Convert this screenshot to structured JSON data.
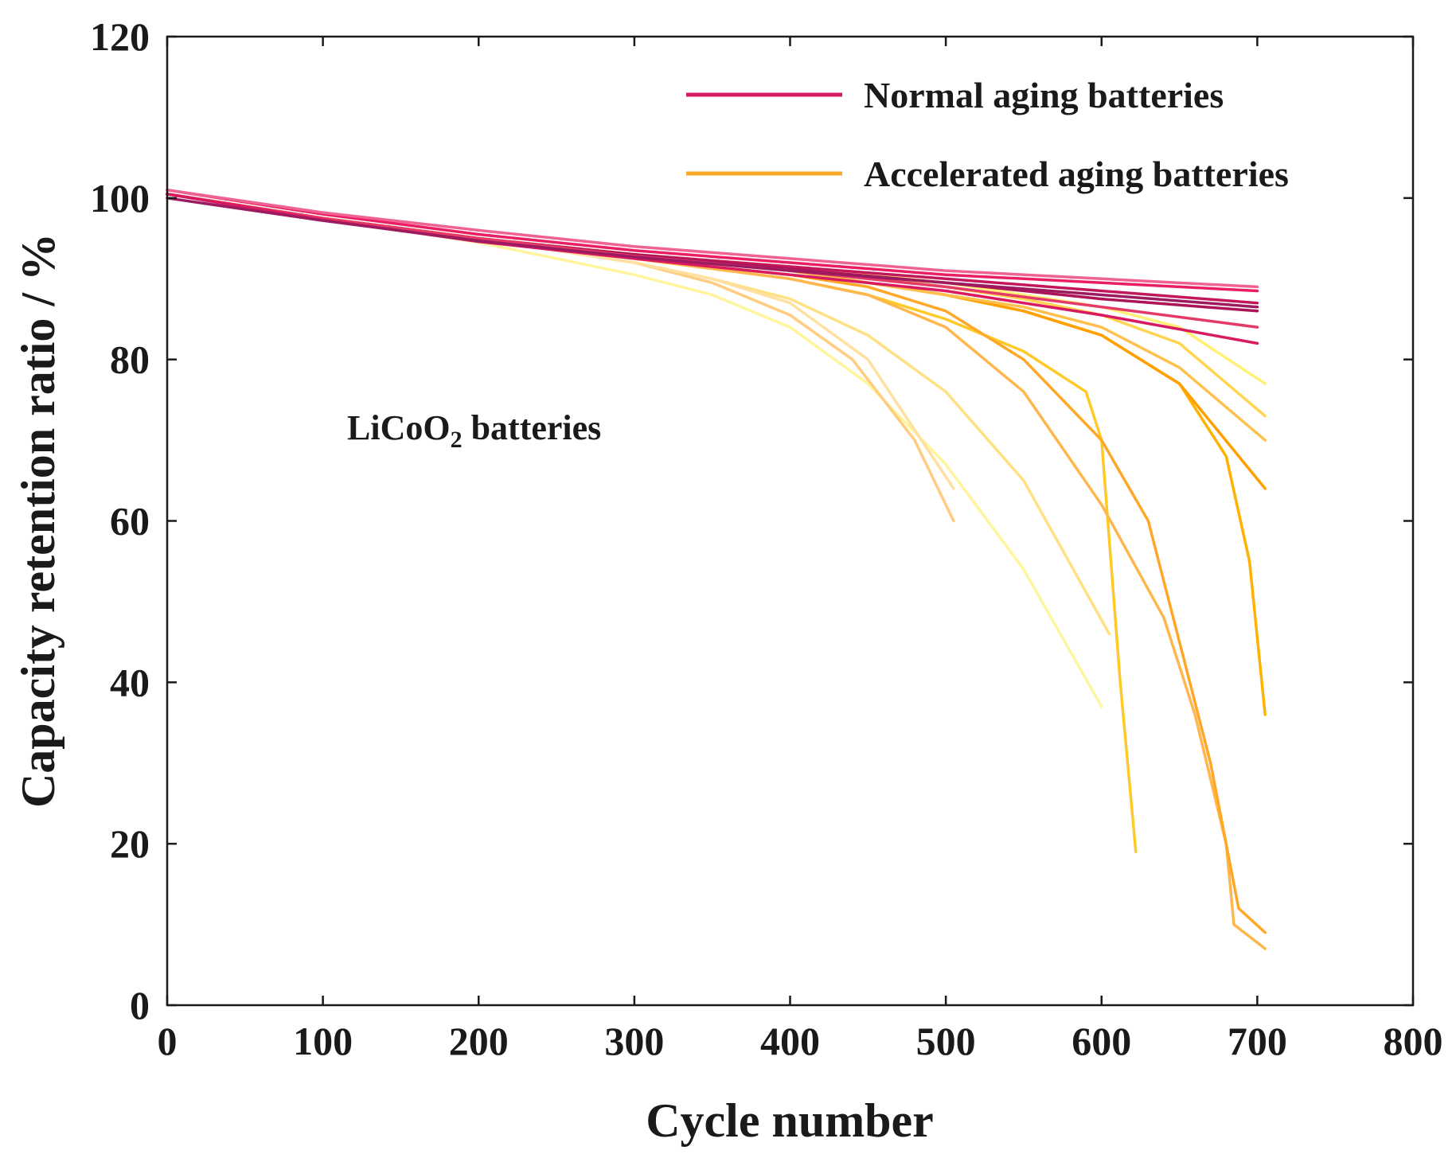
{
  "chart_data": {
    "type": "line",
    "title": "",
    "xlabel": "Cycle number",
    "ylabel": "Capacity retention ratio / %",
    "xlim": [
      0,
      800
    ],
    "ylim": [
      0,
      120
    ],
    "xticks": [
      0,
      100,
      200,
      300,
      400,
      500,
      600,
      700,
      800
    ],
    "yticks": [
      0,
      20,
      40,
      60,
      80,
      100,
      120
    ],
    "grid": false,
    "legend_position": "top-right",
    "legend": [
      {
        "label": "Normal aging batteries",
        "color": "#d81b60"
      },
      {
        "label": "Accelerated aging batteries",
        "color": "#f9a825"
      }
    ],
    "annotation": {
      "prefix": "LiCoO",
      "subscript": "2",
      "suffix": " batteries"
    },
    "series": [
      {
        "name": "Normal aging batteries",
        "color": "#e91e63",
        "x": [
          0,
          100,
          200,
          300,
          400,
          500,
          600,
          700
        ],
        "y": [
          101,
          98,
          95.5,
          93.5,
          92,
          90.5,
          89.5,
          88.5
        ]
      },
      {
        "name": "Normal aging batteries",
        "color": "#c2185b",
        "x": [
          0,
          100,
          200,
          300,
          400,
          500,
          600,
          700
        ],
        "y": [
          100.5,
          97.5,
          95,
          93,
          91.5,
          90,
          88.5,
          87
        ]
      },
      {
        "name": "Normal aging batteries",
        "color": "#ad1457",
        "x": [
          0,
          100,
          200,
          300,
          400,
          500,
          600,
          700
        ],
        "y": [
          100.5,
          97.3,
          94.8,
          93,
          91.2,
          89.5,
          87.5,
          86
        ]
      },
      {
        "name": "Normal aging batteries",
        "color": "#f06292",
        "x": [
          0,
          100,
          200,
          300,
          400,
          500,
          600,
          700
        ],
        "y": [
          101,
          98.2,
          96,
          94,
          92.5,
          91,
          90,
          89
        ]
      },
      {
        "name": "Normal aging batteries",
        "color": "#e53967",
        "x": [
          0,
          100,
          200,
          300,
          400,
          500,
          600,
          700
        ],
        "y": [
          100.5,
          97.5,
          95,
          92.8,
          91,
          89,
          86.5,
          84
        ]
      },
      {
        "name": "Normal aging batteries",
        "color": "#d81b60",
        "x": [
          0,
          100,
          200,
          300,
          400,
          500,
          600,
          700
        ],
        "y": [
          100.5,
          97.3,
          94.6,
          92.5,
          90.5,
          88.5,
          85.5,
          82
        ]
      },
      {
        "name": "Normal aging batteries",
        "color": "#9c1a5f",
        "x": [
          0,
          100,
          200,
          300,
          400,
          500,
          600,
          700
        ],
        "y": [
          100,
          97.2,
          94.7,
          92.7,
          91,
          89.5,
          88,
          86.5
        ]
      },
      {
        "name": "Accelerated aging batteries",
        "color": "#fff59d",
        "x": [
          0,
          100,
          200,
          250,
          300,
          350,
          400,
          450,
          500,
          550,
          600
        ],
        "y": [
          100.5,
          97.5,
          94.5,
          92.5,
          90.5,
          88,
          84,
          77,
          67,
          54,
          37
        ]
      },
      {
        "name": "Accelerated aging batteries",
        "color": "#ffe082",
        "x": [
          0,
          100,
          200,
          300,
          350,
          400,
          450,
          500,
          550,
          605
        ],
        "y": [
          100.5,
          97.5,
          95,
          92,
          90,
          87.5,
          83,
          76,
          65,
          46
        ]
      },
      {
        "name": "Accelerated aging batteries",
        "color": "#ffcc80",
        "x": [
          0,
          100,
          200,
          300,
          350,
          400,
          440,
          480,
          505
        ],
        "y": [
          100.5,
          97.5,
          95,
          92,
          89.5,
          85.5,
          80,
          70,
          60
        ]
      },
      {
        "name": "Accelerated aging batteries",
        "color": "#ffe0a0",
        "x": [
          0,
          100,
          200,
          300,
          350,
          400,
          450,
          505
        ],
        "y": [
          100.5,
          97.5,
          95,
          92,
          90,
          87,
          80,
          64
        ]
      },
      {
        "name": "Accelerated aging batteries",
        "color": "#ffca28",
        "x": [
          0,
          100,
          200,
          300,
          400,
          450,
          500,
          550,
          590,
          600,
          612,
          622
        ],
        "y": [
          100.5,
          97.5,
          95,
          92.5,
          90,
          88,
          85,
          81,
          76,
          70,
          40,
          19
        ]
      },
      {
        "name": "Accelerated aging batteries",
        "color": "#ffb74d",
        "x": [
          0,
          100,
          200,
          300,
          400,
          450,
          500,
          550,
          600,
          640,
          660,
          680,
          685,
          705
        ],
        "y": [
          100.5,
          97.5,
          95,
          92.5,
          90,
          88,
          84,
          76,
          62,
          48,
          36,
          20,
          10,
          7
        ]
      },
      {
        "name": "Accelerated aging batteries",
        "color": "#ffa726",
        "x": [
          0,
          100,
          200,
          300,
          400,
          450,
          500,
          550,
          600,
          630,
          650,
          670,
          688,
          705
        ],
        "y": [
          100.5,
          97.5,
          95,
          92.5,
          90.5,
          89,
          86,
          80,
          70,
          60,
          45,
          30,
          12,
          9
        ]
      },
      {
        "name": "Accelerated aging batteries",
        "color": "#ffb300",
        "x": [
          0,
          100,
          200,
          300,
          400,
          500,
          550,
          600,
          650,
          680,
          695,
          705
        ],
        "y": [
          100.5,
          97.5,
          95,
          93,
          91,
          88,
          86,
          83,
          77,
          68,
          55,
          36
        ]
      },
      {
        "name": "Accelerated aging batteries",
        "color": "#ffa000",
        "x": [
          0,
          100,
          200,
          300,
          400,
          500,
          550,
          600,
          650,
          705
        ],
        "y": [
          100.5,
          97.5,
          95,
          93,
          91,
          88,
          86,
          83,
          77,
          64
        ]
      },
      {
        "name": "Accelerated aging batteries",
        "color": "#ffc04d",
        "x": [
          0,
          100,
          200,
          300,
          400,
          500,
          550,
          600,
          650,
          705
        ],
        "y": [
          100.5,
          97.5,
          95,
          93,
          91,
          88,
          86.5,
          84,
          79,
          70
        ]
      },
      {
        "name": "Accelerated aging batteries",
        "color": "#ffd54f",
        "x": [
          0,
          100,
          200,
          300,
          400,
          500,
          550,
          600,
          650,
          705
        ],
        "y": [
          100.5,
          97.5,
          95,
          93,
          91.5,
          89,
          87.5,
          85.5,
          82,
          73
        ]
      },
      {
        "name": "Accelerated aging batteries",
        "color": "#fff176",
        "x": [
          0,
          100,
          200,
          300,
          400,
          500,
          550,
          600,
          650,
          705
        ],
        "y": [
          100.5,
          97.5,
          95,
          93,
          91.5,
          89.5,
          88,
          86.5,
          84,
          77
        ]
      }
    ]
  }
}
